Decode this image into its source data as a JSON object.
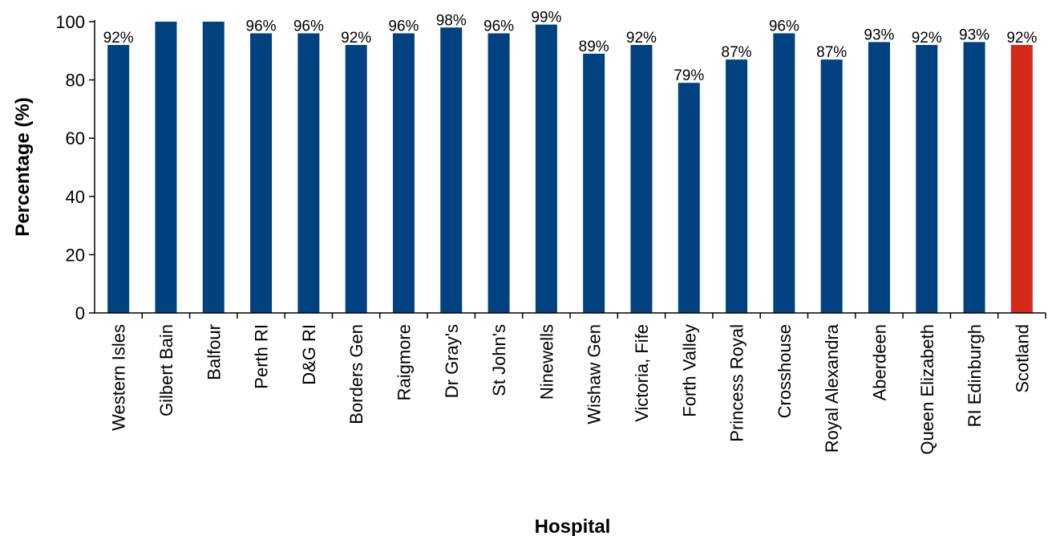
{
  "chart_data": {
    "type": "bar",
    "title": "",
    "xlabel": "Hospital",
    "ylabel": "Percentage (%)",
    "ylim": [
      0,
      100
    ],
    "yticks": [
      0,
      20,
      40,
      60,
      80,
      100
    ],
    "grid": false,
    "legend": "none",
    "categories": [
      "Western Isles",
      "Gilbert Bain",
      "Balfour",
      "Perth RI",
      "D&G RI",
      "Borders Gen",
      "Raigmore",
      "Dr Gray's",
      "St John's",
      "Ninewells",
      "Wishaw Gen",
      "Victoria, Fife",
      "Forth Valley",
      "Princess Royal",
      "Crosshouse",
      "Royal Alexandra",
      "Aberdeen",
      "Queen Elizabeth",
      "RI Edinburgh",
      "Scotland"
    ],
    "values": [
      92,
      100,
      100,
      96,
      96,
      92,
      96,
      98,
      96,
      99,
      89,
      92,
      79,
      87,
      96,
      87,
      93,
      92,
      93,
      92
    ],
    "value_labels": [
      "92%",
      "",
      "",
      "96%",
      "96%",
      "92%",
      "96%",
      "98%",
      "96%",
      "99%",
      "89%",
      "92%",
      "79%",
      "87%",
      "96%",
      "87%",
      "93%",
      "92%",
      "93%",
      "92%"
    ],
    "colors": {
      "hospital": "#00427f",
      "highlight": "#d42a1a",
      "axis": "#000000"
    },
    "highlight_category": "Scotland"
  }
}
